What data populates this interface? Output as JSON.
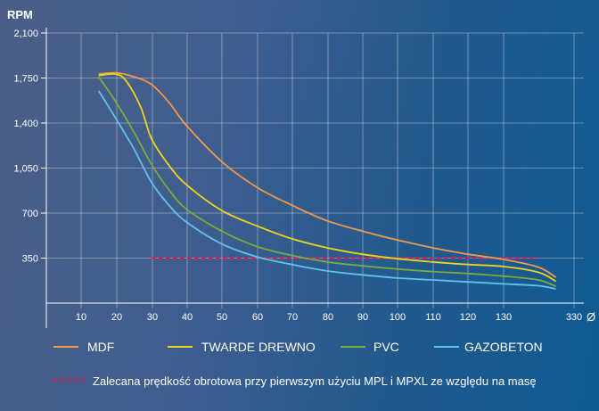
{
  "chart_data": {
    "type": "line",
    "ylabel": "RPM",
    "xlabel": "Ø",
    "x_ticks": [
      "10",
      "20",
      "30",
      "40",
      "50",
      "60",
      "70",
      "80",
      "90",
      "100",
      "110",
      "120",
      "130",
      "330"
    ],
    "y_ticks": [
      "2,100",
      "1,750",
      "1,400",
      "1,050",
      "700",
      "350"
    ],
    "ylim": [
      0,
      2100
    ],
    "grid": true,
    "legend_position": "bottom",
    "series": [
      {
        "name": "MDF",
        "color": "#f29a4a",
        "points": [
          [
            15,
            1780
          ],
          [
            20,
            1790
          ],
          [
            25,
            1760
          ],
          [
            30,
            1700
          ],
          [
            35,
            1560
          ],
          [
            40,
            1380
          ],
          [
            50,
            1100
          ],
          [
            60,
            900
          ],
          [
            70,
            760
          ],
          [
            80,
            640
          ],
          [
            90,
            560
          ],
          [
            100,
            490
          ],
          [
            110,
            430
          ],
          [
            120,
            380
          ],
          [
            130,
            340
          ],
          [
            140,
            280
          ],
          [
            145,
            200
          ]
        ]
      },
      {
        "name": "TWARDE DREWNO",
        "color": "#f2d21a",
        "points": [
          [
            15,
            1770
          ],
          [
            20,
            1780
          ],
          [
            23,
            1720
          ],
          [
            27,
            1520
          ],
          [
            30,
            1280
          ],
          [
            35,
            1070
          ],
          [
            40,
            920
          ],
          [
            50,
            720
          ],
          [
            60,
            600
          ],
          [
            70,
            500
          ],
          [
            80,
            430
          ],
          [
            90,
            380
          ],
          [
            100,
            345
          ],
          [
            110,
            320
          ],
          [
            120,
            300
          ],
          [
            130,
            285
          ],
          [
            140,
            240
          ],
          [
            145,
            170
          ]
        ]
      },
      {
        "name": "PVC",
        "color": "#79ad3c",
        "points": [
          [
            15,
            1760
          ],
          [
            20,
            1560
          ],
          [
            25,
            1330
          ],
          [
            30,
            1080
          ],
          [
            35,
            880
          ],
          [
            40,
            730
          ],
          [
            50,
            560
          ],
          [
            60,
            440
          ],
          [
            70,
            370
          ],
          [
            80,
            320
          ],
          [
            90,
            290
          ],
          [
            100,
            265
          ],
          [
            110,
            245
          ],
          [
            120,
            230
          ],
          [
            130,
            210
          ],
          [
            140,
            180
          ],
          [
            145,
            130
          ]
        ]
      },
      {
        "name": "GAZOBETON",
        "color": "#5ec4ee",
        "points": [
          [
            15,
            1650
          ],
          [
            20,
            1430
          ],
          [
            25,
            1200
          ],
          [
            30,
            940
          ],
          [
            35,
            760
          ],
          [
            40,
            630
          ],
          [
            50,
            460
          ],
          [
            60,
            360
          ],
          [
            70,
            300
          ],
          [
            80,
            250
          ],
          [
            90,
            220
          ],
          [
            100,
            195
          ],
          [
            110,
            180
          ],
          [
            120,
            165
          ],
          [
            130,
            150
          ],
          [
            140,
            135
          ],
          [
            145,
            110
          ]
        ]
      }
    ],
    "reference_line": {
      "label": "Zalecana prędkość obrotowa przy pierwszym użyciu MPL i MPXL ze względu na masę",
      "color": "#d6205a",
      "y": 350,
      "x_range": [
        30,
        140
      ]
    }
  }
}
